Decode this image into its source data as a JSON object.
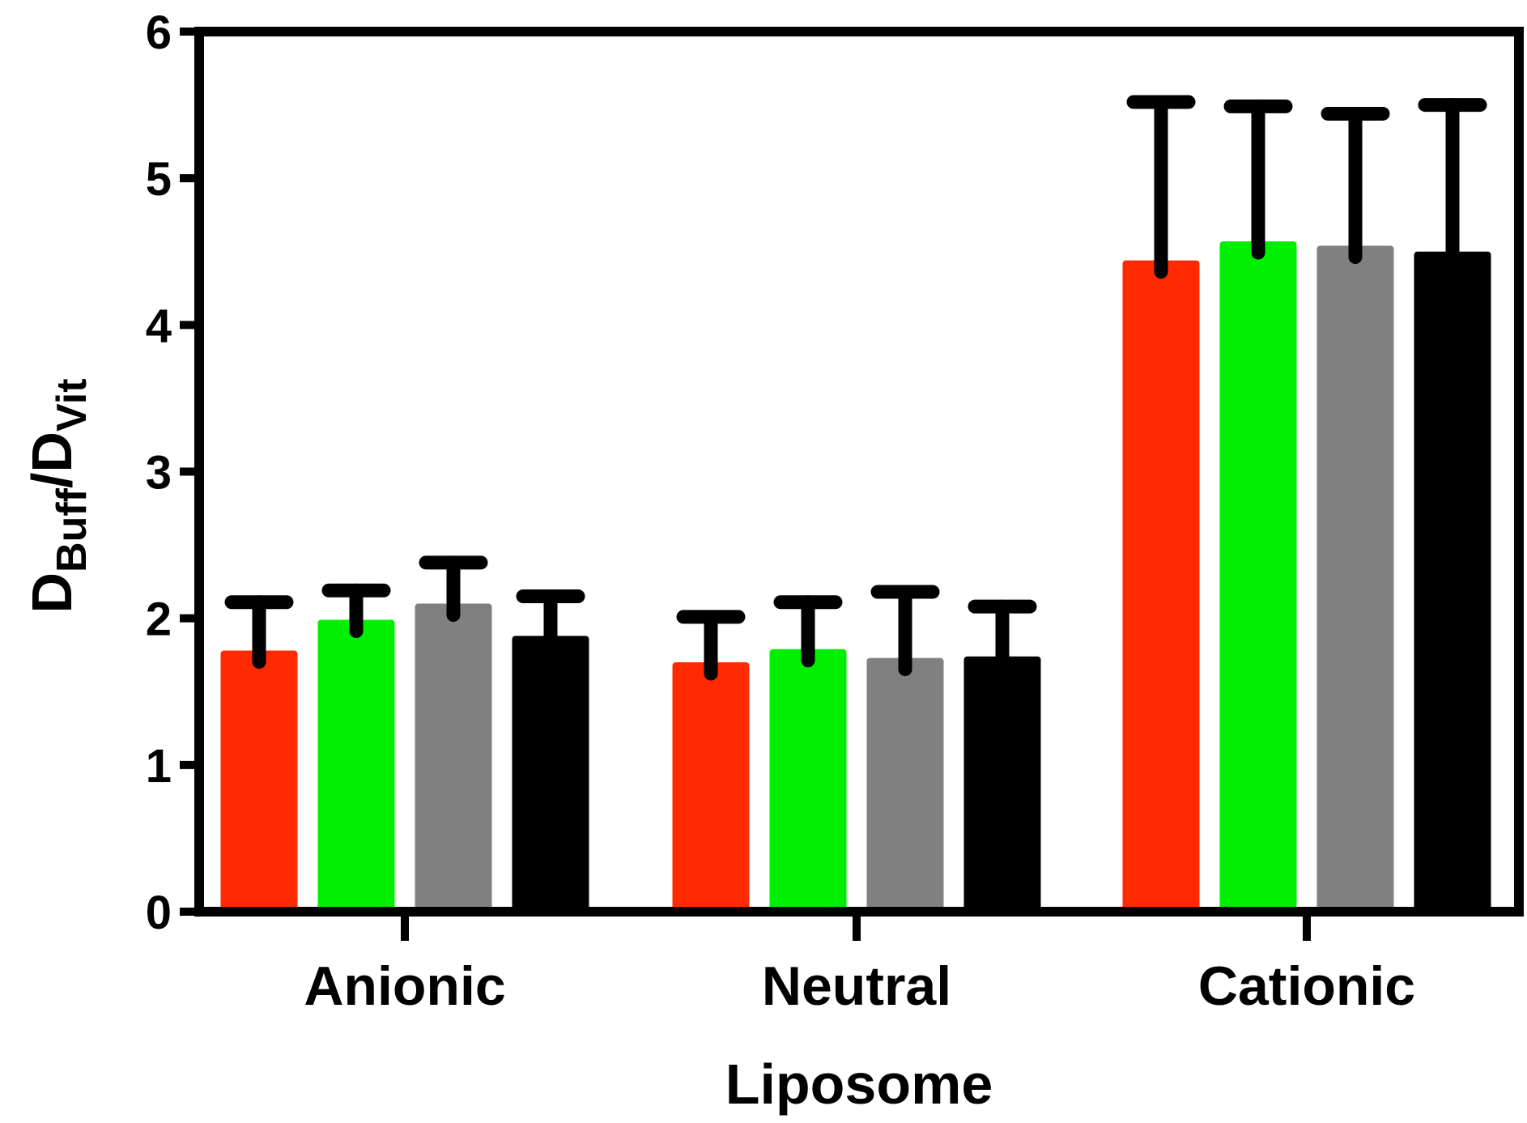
{
  "chart_data": {
    "type": "bar",
    "xlabel": "Liposome",
    "ylabel": {
      "main1": "D",
      "sub1": "Buff",
      "slash": "/",
      "main2": "D",
      "sub2": "Vit"
    },
    "ylim": [
      0,
      6
    ],
    "yticks": [
      "0",
      "1",
      "2",
      "3",
      "4",
      "5",
      "6"
    ],
    "grid": false,
    "categories": [
      "Anionic",
      "Neutral",
      "Cationic"
    ],
    "series": [
      {
        "color": "#ff2a00",
        "values": [
          1.78,
          1.7,
          4.44
        ],
        "errors": [
          0.33,
          0.31,
          1.08
        ]
      },
      {
        "color": "#00ee00",
        "values": [
          1.99,
          1.79,
          4.57
        ],
        "errors": [
          0.2,
          0.32,
          0.92
        ]
      },
      {
        "color": "#808080",
        "values": [
          2.1,
          1.73,
          4.54
        ],
        "errors": [
          0.28,
          0.45,
          0.9
        ]
      },
      {
        "color": "#000000",
        "values": [
          1.88,
          1.74,
          4.5
        ],
        "errors": [
          0.27,
          0.34,
          1.0
        ]
      }
    ]
  }
}
